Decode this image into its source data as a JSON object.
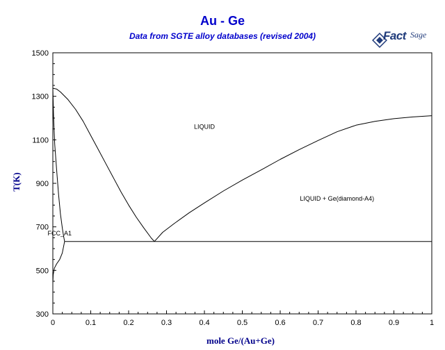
{
  "header": {
    "title": "Au - Ge",
    "subtitle": "Data from SGTE alloy databases (revised 2004)",
    "logo_text": "FactSage",
    "logo_fact": "Fact",
    "logo_sage": "Sage"
  },
  "colors": {
    "title": "#0000cc",
    "axis_label": "#00008b",
    "lines": "#000000",
    "logo": "#1f3a7a"
  },
  "chart_data": {
    "type": "line",
    "title": "Au - Ge",
    "subtitle": "Data from SGTE alloy databases (revised 2004)",
    "xlabel": "mole Ge/(Au+Ge)",
    "ylabel": "T(K)",
    "xlim": [
      0,
      1
    ],
    "ylim": [
      300,
      1500
    ],
    "x_ticks": [
      "0",
      "0.1",
      "0.2",
      "0.3",
      "0.4",
      "0.5",
      "0.6",
      "0.7",
      "0.8",
      "0.9",
      "1"
    ],
    "y_ticks": [
      "300",
      "500",
      "700",
      "900",
      "1100",
      "1300",
      "1500"
    ],
    "grid": false,
    "legend": "none",
    "series": [
      {
        "points": [
          [
            0.0,
            1337
          ],
          [
            0.01,
            1333
          ],
          [
            0.02,
            1320
          ],
          [
            0.04,
            1285
          ],
          [
            0.06,
            1240
          ],
          [
            0.08,
            1185
          ],
          [
            0.1,
            1120
          ],
          [
            0.12,
            1055
          ],
          [
            0.14,
            990
          ],
          [
            0.16,
            925
          ],
          [
            0.18,
            860
          ],
          [
            0.2,
            800
          ],
          [
            0.22,
            745
          ],
          [
            0.24,
            695
          ],
          [
            0.26,
            648
          ],
          [
            0.268,
            633
          ]
        ]
      },
      {
        "points": [
          [
            0.268,
            633
          ],
          [
            0.29,
            675
          ],
          [
            0.32,
            715
          ],
          [
            0.36,
            765
          ],
          [
            0.4,
            810
          ],
          [
            0.45,
            865
          ],
          [
            0.5,
            915
          ],
          [
            0.55,
            962
          ],
          [
            0.6,
            1010
          ],
          [
            0.65,
            1055
          ],
          [
            0.7,
            1097
          ],
          [
            0.75,
            1137
          ],
          [
            0.8,
            1167
          ],
          [
            0.85,
            1185
          ],
          [
            0.9,
            1197
          ],
          [
            0.95,
            1205
          ],
          [
            1.0,
            1211
          ]
        ]
      },
      {
        "points": [
          [
            0.0,
            1337
          ],
          [
            0.002,
            1200
          ],
          [
            0.005,
            1080
          ],
          [
            0.01,
            960
          ],
          [
            0.015,
            850
          ],
          [
            0.02,
            760
          ],
          [
            0.025,
            695
          ],
          [
            0.028,
            660
          ],
          [
            0.031,
            633
          ]
        ]
      },
      {
        "points": [
          [
            0.031,
            633
          ],
          [
            0.025,
            580
          ],
          [
            0.018,
            550
          ],
          [
            0.01,
            530
          ],
          [
            0.004,
            510
          ],
          [
            0.001,
            480
          ],
          [
            0.0,
            440
          ]
        ]
      },
      {
        "points": [
          [
            0.031,
            633
          ],
          [
            1.0,
            633
          ]
        ]
      }
    ],
    "annotations": [
      {
        "text": "LIQUID",
        "x": 0.4,
        "y": 1150
      },
      {
        "text": "LIQUID + Ge(diamond-A4)",
        "x": 0.75,
        "y": 820
      },
      {
        "text": "FCC_A1",
        "x": 0.018,
        "y": 660
      }
    ]
  }
}
